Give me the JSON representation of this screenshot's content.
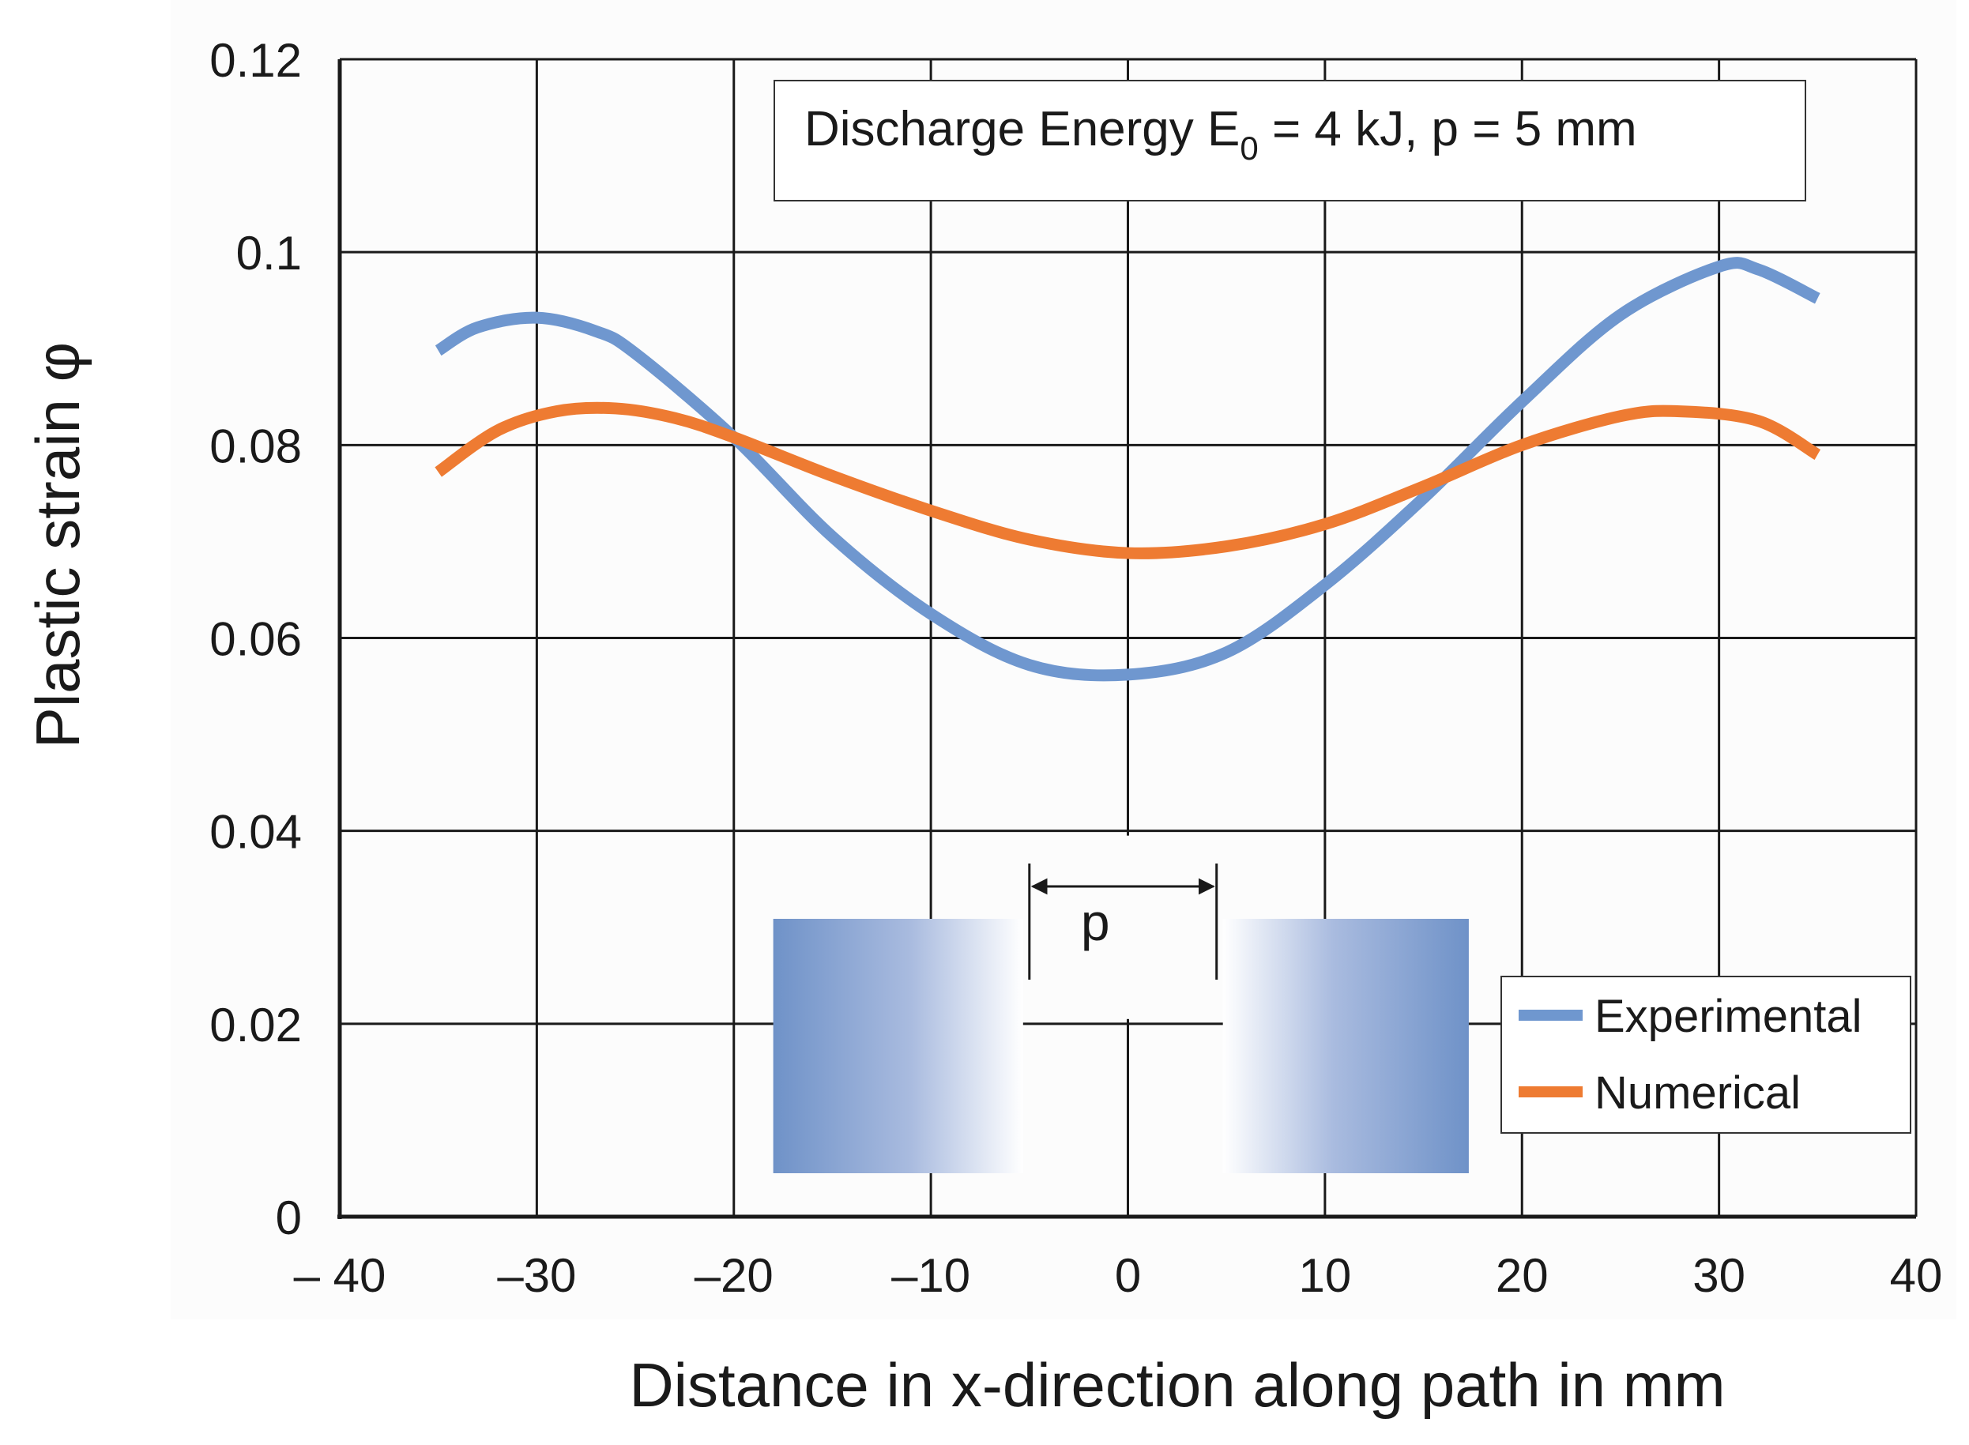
{
  "chart_data": {
    "type": "line",
    "title": "",
    "annotation": {
      "prefix": "Discharge Energy E",
      "subscript": "0",
      "suffix": " = 4 kJ, p = 5 mm"
    },
    "xlabel": "Distance in x-direction along path in mm",
    "ylabel": "Plastic strain φ",
    "xlim": [
      -40,
      40
    ],
    "ylim": [
      0,
      0.12
    ],
    "grid": true,
    "x_ticks": [
      -40,
      -30,
      -20,
      -10,
      0,
      10,
      20,
      30,
      40
    ],
    "x_tick_labels": [
      "– 40",
      "–30",
      "–20",
      "–10",
      "0",
      "10",
      "20",
      "30",
      "40"
    ],
    "y_ticks": [
      0,
      0.02,
      0.04,
      0.06,
      0.08,
      0.1,
      0.12
    ],
    "y_tick_labels": [
      "0",
      "0.02",
      "0.04",
      "0.06",
      "0.08",
      "0.1",
      "0.12"
    ],
    "legend_position": "bottom-right",
    "series": [
      {
        "name": "Experimental",
        "color": "#6f97cf",
        "x": [
          -35,
          -33,
          -30,
          -27,
          -25,
          -20,
          -15,
          -10,
          -5,
          0,
          5,
          10,
          15,
          20,
          25,
          30,
          32,
          35
        ],
        "y": [
          0.0898,
          0.0922,
          0.0932,
          0.0918,
          0.0895,
          0.0808,
          0.0705,
          0.0625,
          0.0572,
          0.0562,
          0.0585,
          0.0655,
          0.0745,
          0.0845,
          0.0935,
          0.0985,
          0.0982,
          0.0952
        ]
      },
      {
        "name": "Numerical",
        "color": "#ee7b32",
        "x": [
          -35,
          -32,
          -29,
          -26,
          -23,
          -20,
          -15,
          -10,
          -5,
          0,
          5,
          10,
          15,
          20,
          25,
          28,
          32,
          35
        ],
        "y": [
          0.0772,
          0.0815,
          0.0835,
          0.0838,
          0.0828,
          0.0808,
          0.0768,
          0.0732,
          0.0702,
          0.0688,
          0.0695,
          0.0718,
          0.0757,
          0.08,
          0.083,
          0.0835,
          0.0825,
          0.079
        ]
      }
    ],
    "inset": {
      "label": "p"
    }
  }
}
